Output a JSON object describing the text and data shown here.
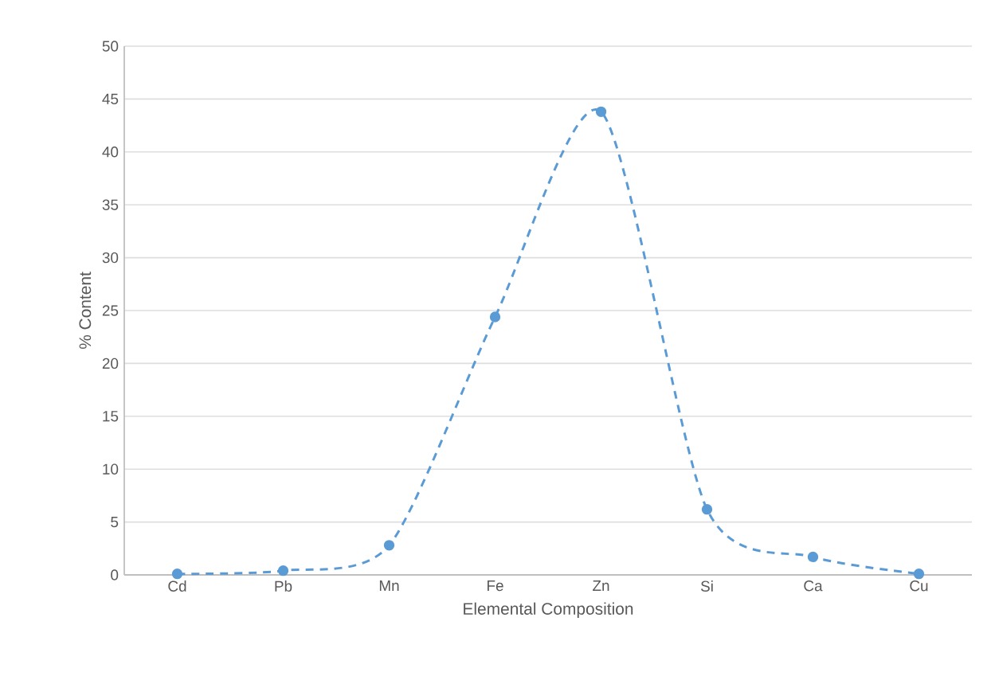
{
  "chart_data": {
    "type": "line",
    "xlabel": "Elemental Composition",
    "ylabel": "% Content",
    "categories": [
      "Cd",
      "Pb",
      "Mn",
      "Fe",
      "Zn",
      "Si",
      "Ca",
      "Cu"
    ],
    "series": [
      {
        "color": "#5b9bd5",
        "values": [
          0.1,
          0.4,
          2.8,
          24.4,
          43.8,
          6.2,
          1.7,
          0.1
        ]
      }
    ],
    "ylim": [
      0,
      50
    ],
    "yticks": [
      0,
      5,
      10,
      15,
      20,
      25,
      30,
      35,
      40,
      45,
      50
    ],
    "grid": "y",
    "marker": "circle",
    "line_style": "dashed",
    "legend": false
  }
}
